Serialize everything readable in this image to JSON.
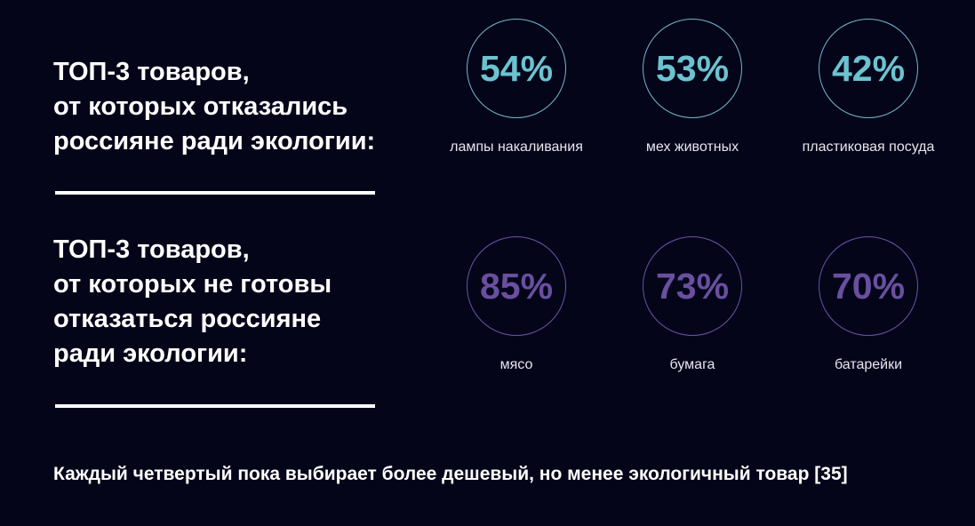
{
  "section1": {
    "heading": "ТОП-3 товаров,\nот которых отказались\nроссияне ради экологии:",
    "items": [
      {
        "value": "54%",
        "label": "лампы накаливания"
      },
      {
        "value": "53%",
        "label": "мех животных"
      },
      {
        "value": "42%",
        "label": "пластиковая посуда"
      }
    ]
  },
  "section2": {
    "heading": "ТОП-3 товаров,\nот которых не готовы\nотказаться россияне\nради экологии:",
    "items": [
      {
        "value": "85%",
        "label": "мясо"
      },
      {
        "value": "73%",
        "label": "бумага"
      },
      {
        "value": "70%",
        "label": "батарейки"
      }
    ]
  },
  "footer": "Каждый четвертый пока выбирает более дешевый, но менее экологичный товар [35]",
  "colors": {
    "background": "#05051a",
    "cyan": "#6cc3d0",
    "purple": "#6a4fa0"
  }
}
